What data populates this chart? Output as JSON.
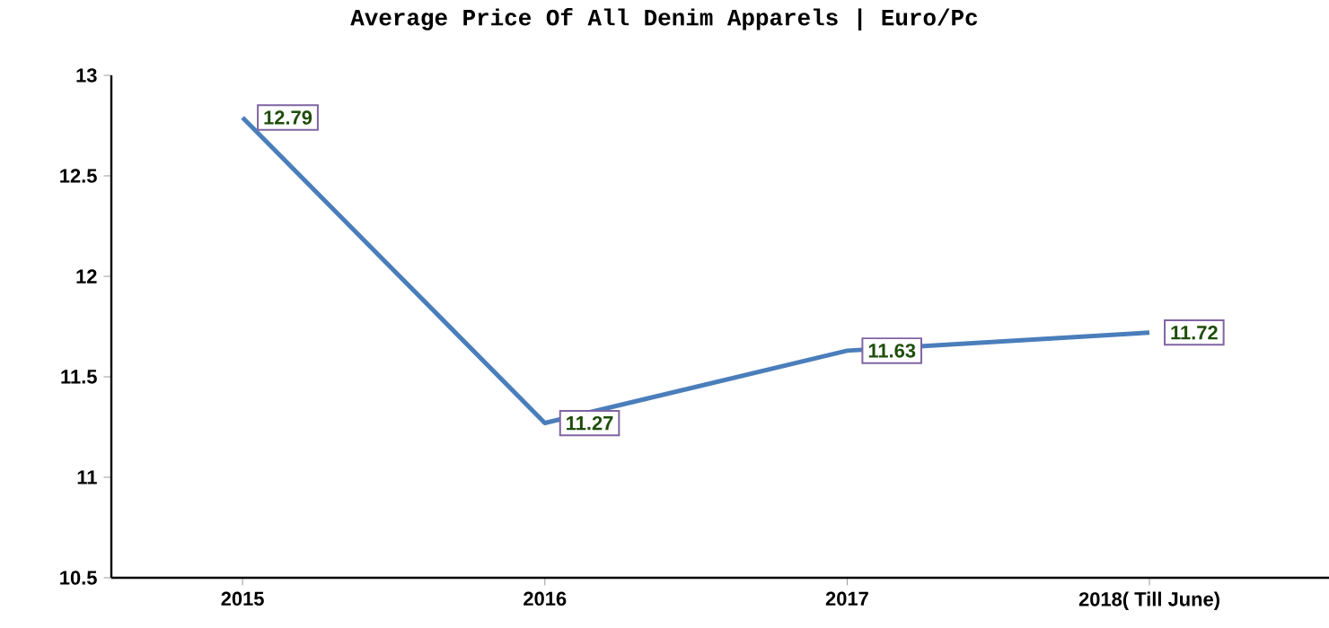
{
  "chart_data": {
    "type": "line",
    "title": "Average Price Of All Denim Apparels | Euro/Pc",
    "categories": [
      "2015",
      "2016",
      "2017",
      "2018( Till June)"
    ],
    "values": [
      12.79,
      11.27,
      11.63,
      11.72
    ],
    "color": "#4a7ebb",
    "ylim": [
      10.5,
      13
    ],
    "yticks": [
      10.5,
      11,
      11.5,
      12,
      12.5,
      13
    ],
    "grid": false,
    "line_style": "solid",
    "data_labels": true
  }
}
